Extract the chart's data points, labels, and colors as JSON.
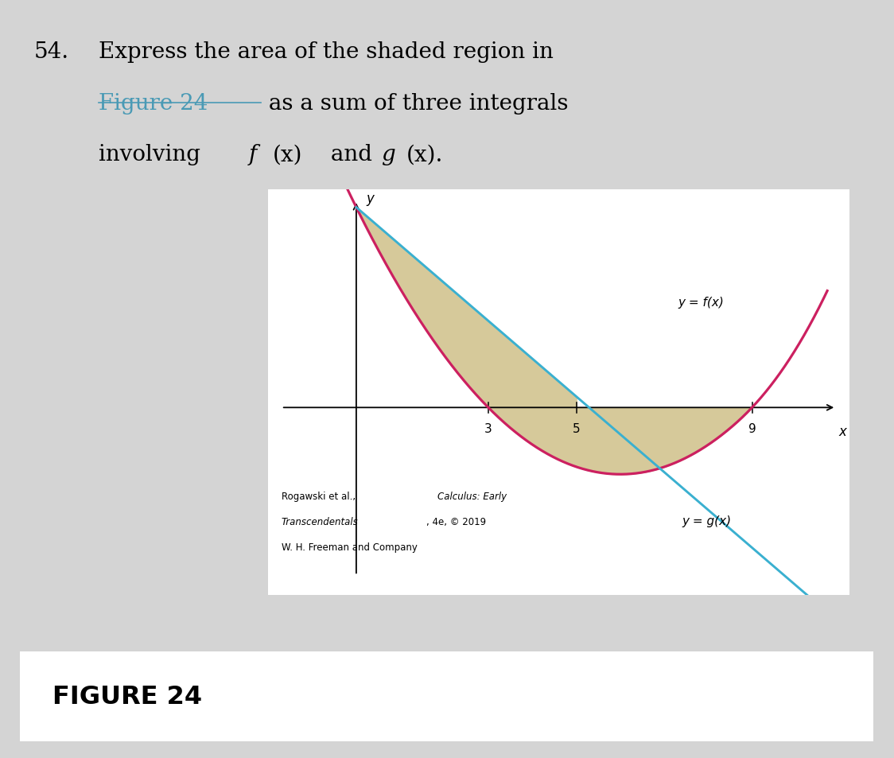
{
  "bg_outer": "#d4d4d4",
  "bg_graph": "#ffffff",
  "bg_bottom": "#ffffff",
  "f_color": "#cc2060",
  "g_color": "#3ab0d0",
  "shade_color": "#d6c99a",
  "shade_alpha": 1.0,
  "x_ticks": [
    3,
    5,
    9
  ],
  "axis_color": "black",
  "link_color": "#4a9ab5",
  "fig_label": "FIGURE 24",
  "label_fx": "y = f(x)",
  "label_gx": "y = g(x)",
  "ax_x": "x",
  "ax_y": "y"
}
